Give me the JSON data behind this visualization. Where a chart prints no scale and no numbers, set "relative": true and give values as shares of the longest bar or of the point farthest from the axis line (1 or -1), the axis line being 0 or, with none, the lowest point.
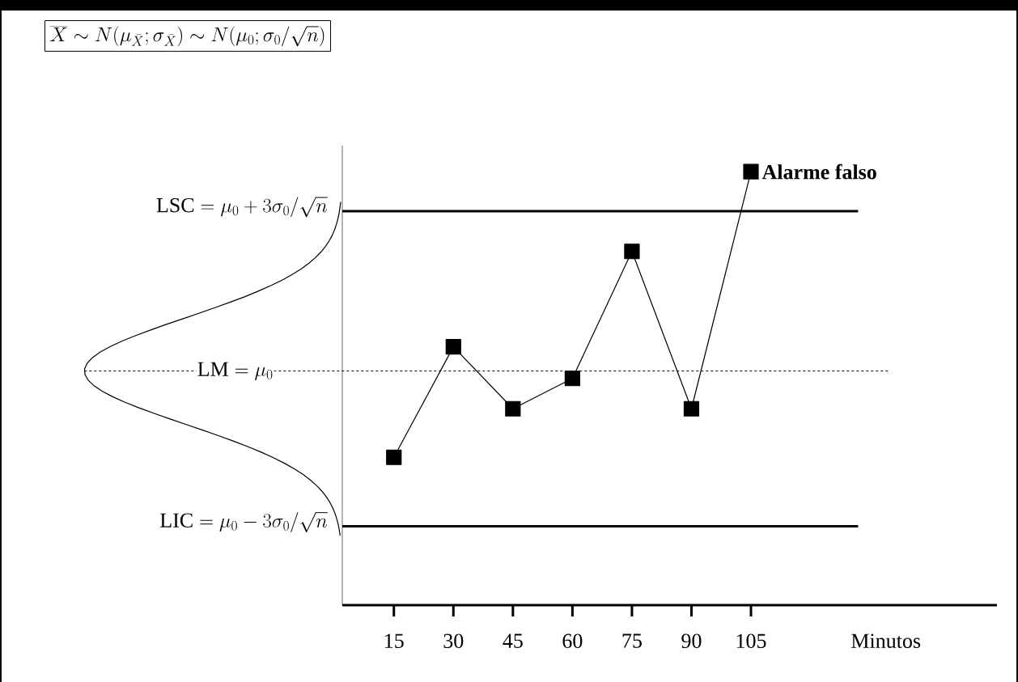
{
  "chart_data": {
    "type": "line",
    "relative": true,
    "title": "\\overline{X} \\sim N(\\mu_{\\bar{X}};\\sigma_{\\bar{X}}) \\sim N(\\mu_0;\\sigma_0/\\sqrt{n})",
    "xlabel": "Minutos",
    "x": [
      15,
      30,
      45,
      60,
      75,
      90,
      105
    ],
    "xlim": [
      2,
      167
    ],
    "xticks": [
      15,
      30,
      45,
      60,
      75,
      90,
      105
    ],
    "series": [
      {
        "color": "#000000",
        "values": [
          0.341,
          0.596,
          0.453,
          0.523,
          0.816,
          0.453,
          1.0
        ]
      }
    ],
    "marker": "square",
    "line_style": "solid",
    "grid": false,
    "ref_lines": [
      {
        "axis": "y",
        "value": 0.909,
        "label": "\\mathrm{LSC} = \\mu_0 + 3\\sigma_0/\\sqrt{n}",
        "line_style": "solid",
        "color": "#000000"
      },
      {
        "axis": "y",
        "value": 0.54,
        "label": "\\mathrm{LM} = \\mu_0",
        "line_style": "dashed",
        "color": "#000000"
      },
      {
        "axis": "y",
        "value": 0.182,
        "label": "\\mathrm{LIC} = \\mu_0 - 3\\sigma_0/\\sqrt{n}",
        "line_style": "solid",
        "color": "#000000"
      }
    ],
    "annotations": [
      {
        "text": "Alarme falso",
        "x": 105,
        "y": 1.0
      }
    ]
  }
}
